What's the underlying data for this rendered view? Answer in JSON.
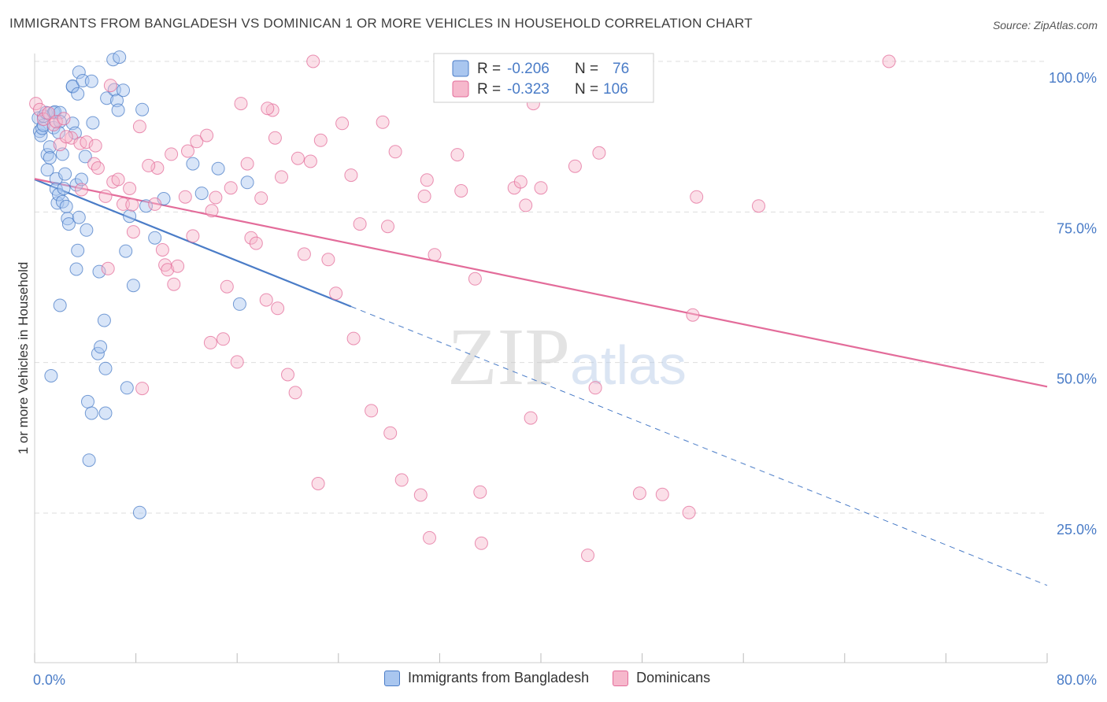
{
  "header": {
    "title": "IMMIGRANTS FROM BANGLADESH VS DOMINICAN 1 OR MORE VEHICLES IN HOUSEHOLD CORRELATION CHART",
    "source": "Source: ZipAtlas.com"
  },
  "watermark": "ZIPatlas",
  "legend": {
    "rows": [
      {
        "r_label": "R =",
        "r_value": "-0.206",
        "n_label": "N =",
        "n_value": "76"
      },
      {
        "r_label": "R =",
        "r_value": "-0.323",
        "n_label": "N =",
        "n_value": "106"
      }
    ]
  },
  "colors": {
    "blue": "#4a7cc7",
    "blue_fill": "#a9c6ef",
    "pink": "#e36c9a",
    "pink_fill": "#f6b8cc",
    "grid": "#dddddd",
    "axis_label": "#4a7cc7"
  },
  "chart_data": {
    "type": "scatter",
    "title": "IMMIGRANTS FROM BANGLADESH VS DOMINICAN 1 OR MORE VEHICLES IN HOUSEHOLD CORRELATION CHART",
    "xlabel": "",
    "ylabel": "1 or more Vehicles in Household",
    "xlim": [
      0,
      80
    ],
    "ylim": [
      0,
      100
    ],
    "x_tick_labels": [
      "0.0%",
      "80.0%"
    ],
    "y_ticks": [
      25,
      50,
      75,
      100
    ],
    "y_tick_labels": [
      "25.0%",
      "50.0%",
      "75.0%",
      "100.0%"
    ],
    "legend_position": "top-center",
    "series": [
      {
        "name": "Immigrants from Bangladesh",
        "color": "#4a7cc7",
        "r": -0.206,
        "n": 76,
        "trend": {
          "x_start": 0,
          "y_start": 80.4,
          "x_end": 25,
          "y_end": 59.3,
          "dash_x_end": 80,
          "dash_y_end": 13.0
        },
        "points": [
          [
            0.3,
            90.6
          ],
          [
            0.4,
            88.4
          ],
          [
            0.5,
            87.7
          ],
          [
            0.6,
            88.9
          ],
          [
            0.7,
            89.4
          ],
          [
            0.7,
            90.9
          ],
          [
            0.9,
            91.5
          ],
          [
            1.0,
            82.0
          ],
          [
            1.0,
            84.5
          ],
          [
            1.2,
            85.8
          ],
          [
            1.2,
            84.0
          ],
          [
            1.5,
            89.0
          ],
          [
            1.5,
            91.5
          ],
          [
            1.6,
            91.6
          ],
          [
            1.7,
            80.5
          ],
          [
            1.7,
            78.8
          ],
          [
            1.8,
            76.5
          ],
          [
            1.9,
            77.9
          ],
          [
            2.0,
            91.5
          ],
          [
            2.0,
            90.0
          ],
          [
            2.2,
            76.7
          ],
          [
            2.3,
            78.9
          ],
          [
            2.4,
            81.3
          ],
          [
            2.5,
            75.9
          ],
          [
            2.6,
            73.9
          ],
          [
            2.7,
            73.0
          ],
          [
            3.0,
            95.8
          ],
          [
            3.0,
            95.9
          ],
          [
            3.0,
            89.7
          ],
          [
            3.2,
            88.1
          ],
          [
            3.3,
            79.5
          ],
          [
            3.3,
            65.5
          ],
          [
            3.4,
            68.6
          ],
          [
            3.4,
            94.6
          ],
          [
            3.5,
            98.2
          ],
          [
            3.7,
            80.4
          ],
          [
            3.8,
            96.8
          ],
          [
            4.0,
            84.2
          ],
          [
            4.5,
            96.7
          ],
          [
            4.6,
            89.8
          ],
          [
            4.1,
            72.0
          ],
          [
            5.0,
            51.5
          ],
          [
            5.2,
            52.6
          ],
          [
            5.5,
            57.0
          ],
          [
            5.6,
            49.0
          ],
          [
            5.7,
            93.9
          ],
          [
            6.2,
            100.3
          ],
          [
            6.3,
            95.3
          ],
          [
            6.5,
            93.5
          ],
          [
            6.6,
            91.9
          ],
          [
            6.7,
            100.7
          ],
          [
            7.0,
            95.2
          ],
          [
            7.2,
            68.5
          ],
          [
            7.3,
            45.8
          ],
          [
            7.5,
            74.3
          ],
          [
            7.8,
            62.8
          ],
          [
            8.5,
            92.0
          ],
          [
            8.8,
            76.0
          ],
          [
            9.5,
            70.7
          ],
          [
            10.2,
            77.2
          ],
          [
            12.5,
            83.0
          ],
          [
            13.2,
            78.1
          ],
          [
            14.5,
            82.2
          ],
          [
            16.2,
            59.7
          ],
          [
            16.8,
            79.9
          ],
          [
            1.3,
            47.8
          ],
          [
            2.0,
            59.5
          ],
          [
            4.2,
            43.5
          ],
          [
            4.5,
            41.6
          ],
          [
            4.3,
            33.8
          ],
          [
            5.6,
            41.6
          ],
          [
            8.3,
            25.1
          ],
          [
            5.1,
            65.1
          ],
          [
            2.2,
            84.6
          ],
          [
            3.5,
            74.1
          ],
          [
            1.9,
            88.2
          ]
        ]
      },
      {
        "name": "Dominicans",
        "color": "#e36c9a",
        "r": -0.323,
        "n": 106,
        "trend": {
          "x_start": 0,
          "y_start": 80.5,
          "x_end": 80,
          "y_end": 46.0
        },
        "points": [
          [
            0.1,
            93.0
          ],
          [
            0.4,
            92.0
          ],
          [
            0.7,
            90.4
          ],
          [
            1.1,
            91.4
          ],
          [
            1.5,
            89.5
          ],
          [
            1.7,
            90.0
          ],
          [
            2.0,
            86.2
          ],
          [
            2.3,
            90.5
          ],
          [
            2.9,
            87.3
          ],
          [
            3.6,
            86.4
          ],
          [
            3.7,
            78.7
          ],
          [
            4.1,
            86.6
          ],
          [
            4.7,
            83.0
          ],
          [
            5.0,
            82.3
          ],
          [
            5.6,
            77.6
          ],
          [
            5.8,
            65.6
          ],
          [
            6.2,
            80.0
          ],
          [
            6.6,
            80.4
          ],
          [
            7.0,
            76.3
          ],
          [
            7.5,
            78.9
          ],
          [
            7.7,
            76.2
          ],
          [
            7.8,
            71.7
          ],
          [
            8.3,
            89.2
          ],
          [
            8.5,
            45.7
          ],
          [
            9.5,
            76.3
          ],
          [
            9.7,
            82.3
          ],
          [
            10.1,
            68.7
          ],
          [
            10.3,
            66.2
          ],
          [
            10.5,
            65.4
          ],
          [
            10.8,
            84.6
          ],
          [
            11.0,
            63.0
          ],
          [
            11.3,
            66.0
          ],
          [
            11.9,
            77.5
          ],
          [
            12.8,
            86.7
          ],
          [
            12.5,
            71.0
          ],
          [
            13.6,
            87.7
          ],
          [
            13.9,
            53.3
          ],
          [
            14.0,
            75.2
          ],
          [
            14.3,
            77.4
          ],
          [
            14.9,
            53.9
          ],
          [
            15.2,
            62.6
          ],
          [
            15.5,
            79.0
          ],
          [
            16.0,
            50.1
          ],
          [
            16.3,
            93.0
          ],
          [
            16.8,
            83.0
          ],
          [
            17.1,
            70.7
          ],
          [
            17.5,
            69.8
          ],
          [
            17.9,
            77.3
          ],
          [
            18.3,
            60.4
          ],
          [
            18.8,
            91.9
          ],
          [
            19.0,
            87.3
          ],
          [
            19.2,
            59.0
          ],
          [
            19.5,
            80.8
          ],
          [
            20.0,
            48.0
          ],
          [
            20.6,
            45.0
          ],
          [
            20.8,
            83.9
          ],
          [
            21.3,
            68.0
          ],
          [
            21.8,
            83.4
          ],
          [
            22.0,
            100.0
          ],
          [
            22.4,
            29.9
          ],
          [
            22.6,
            86.9
          ],
          [
            23.2,
            67.1
          ],
          [
            23.8,
            61.5
          ],
          [
            24.3,
            89.7
          ],
          [
            25.0,
            81.1
          ],
          [
            25.2,
            54.0
          ],
          [
            25.7,
            73.0
          ],
          [
            26.6,
            42.0
          ],
          [
            27.5,
            89.9
          ],
          [
            27.9,
            72.6
          ],
          [
            28.1,
            38.3
          ],
          [
            28.5,
            85.0
          ],
          [
            29.0,
            30.5
          ],
          [
            30.5,
            28.0
          ],
          [
            30.8,
            77.6
          ],
          [
            31.0,
            80.3
          ],
          [
            31.6,
            67.9
          ],
          [
            31.2,
            20.9
          ],
          [
            33.4,
            84.5
          ],
          [
            33.7,
            78.5
          ],
          [
            34.8,
            63.9
          ],
          [
            35.2,
            28.5
          ],
          [
            35.3,
            20.0
          ],
          [
            37.9,
            79.0
          ],
          [
            38.4,
            80.0
          ],
          [
            38.8,
            76.1
          ],
          [
            39.4,
            93.0
          ],
          [
            39.2,
            40.8
          ],
          [
            40.0,
            79.0
          ],
          [
            42.7,
            82.6
          ],
          [
            43.7,
            18.0
          ],
          [
            44.3,
            45.8
          ],
          [
            44.6,
            84.8
          ],
          [
            47.8,
            28.3
          ],
          [
            49.6,
            28.1
          ],
          [
            51.7,
            25.1
          ],
          [
            52.0,
            57.9
          ],
          [
            52.3,
            77.5
          ],
          [
            57.2,
            76.0
          ],
          [
            67.5,
            100.0
          ],
          [
            12.1,
            85.1
          ],
          [
            6.0,
            96.0
          ],
          [
            9.0,
            82.7
          ],
          [
            2.5,
            87.5
          ],
          [
            4.8,
            86.0
          ],
          [
            18.4,
            92.2
          ]
        ]
      }
    ]
  },
  "bottom_legend": {
    "items": [
      {
        "label": "Immigrants from Bangladesh"
      },
      {
        "label": "Dominicans"
      }
    ]
  }
}
